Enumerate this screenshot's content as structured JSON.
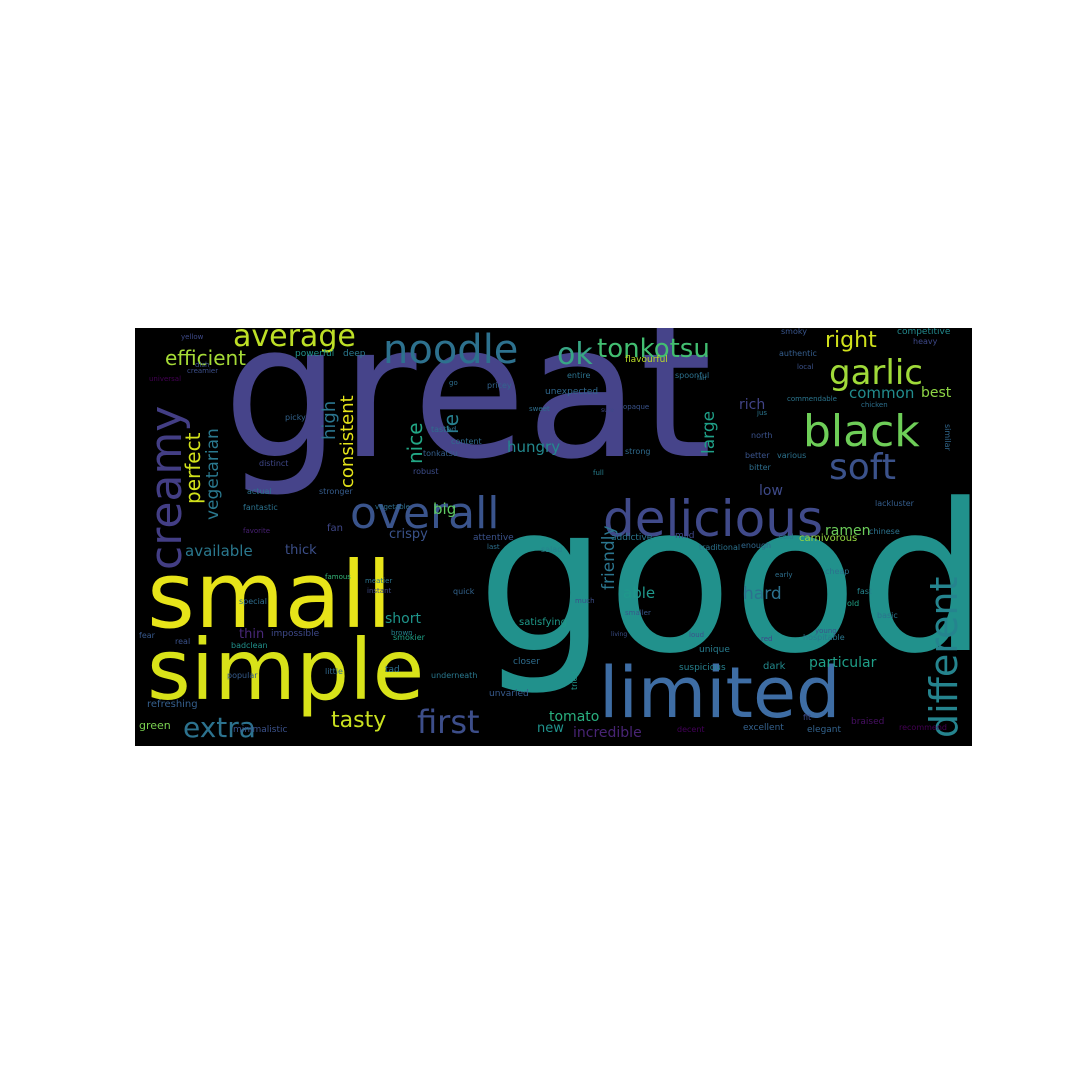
{
  "words": [
    {
      "text": "great",
      "color": "#46448a"
    },
    {
      "text": "good",
      "color": "#21918c"
    },
    {
      "text": "small",
      "color": "#e7e419"
    },
    {
      "text": "simple",
      "color": "#d8e219"
    },
    {
      "text": "limited",
      "color": "#3e6da4"
    },
    {
      "text": "delicious",
      "color": "#404a8a"
    },
    {
      "text": "overall",
      "color": "#3a548c"
    },
    {
      "text": "creamy",
      "color": "#433e85"
    },
    {
      "text": "noodle",
      "color": "#2d718e"
    },
    {
      "text": "different",
      "color": "#25848e"
    },
    {
      "text": "black",
      "color": "#6ece58"
    },
    {
      "text": "soft",
      "color": "#3b528b"
    },
    {
      "text": "garlic",
      "color": "#a0da39"
    },
    {
      "text": "average",
      "color": "#bddf26"
    },
    {
      "text": "ok",
      "color": "#38a685"
    },
    {
      "text": "tonkotsu",
      "color": "#42be71"
    },
    {
      "text": "efficient",
      "color": "#a5db36"
    },
    {
      "text": "right",
      "color": "#d0e11c"
    },
    {
      "text": "first",
      "color": "#3d4e8a"
    },
    {
      "text": "extra",
      "color": "#2c728e"
    },
    {
      "text": "tasty",
      "color": "#cae11f"
    },
    {
      "text": "perfect",
      "color": "#d2e21b"
    },
    {
      "text": "vegetarian",
      "color": "#2a788e"
    },
    {
      "text": "available",
      "color": "#2a788e"
    },
    {
      "text": "nice",
      "color": "#22a785"
    },
    {
      "text": "consistent",
      "color": "#e5e419"
    },
    {
      "text": "high",
      "color": "#2b758e"
    },
    {
      "text": "hungry",
      "color": "#23898e"
    },
    {
      "text": "friendly",
      "color": "#2b758e"
    },
    {
      "text": "large",
      "color": "#1fa088"
    },
    {
      "text": "rich",
      "color": "#414487"
    },
    {
      "text": "low",
      "color": "#3e4a89"
    },
    {
      "text": "common",
      "color": "#228c8d"
    },
    {
      "text": "best",
      "color": "#8ed645"
    },
    {
      "text": "ramen",
      "color": "#6ccd5a"
    },
    {
      "text": "re",
      "color": "#277f8e"
    },
    {
      "text": "big",
      "color": "#5ec962"
    },
    {
      "text": "crispy",
      "color": "#3a538b"
    },
    {
      "text": "thick",
      "color": "#3c4f8a"
    },
    {
      "text": "able",
      "color": "#1f988b"
    },
    {
      "text": "hard",
      "color": "#2c718e"
    },
    {
      "text": "short",
      "color": "#1f958b"
    },
    {
      "text": "particular",
      "color": "#1f9f88"
    },
    {
      "text": "tomato",
      "color": "#29af7f"
    },
    {
      "text": "new",
      "color": "#20928c"
    },
    {
      "text": "incredible",
      "color": "#482475"
    },
    {
      "text": "thin",
      "color": "#482878"
    },
    {
      "text": "fan",
      "color": "#3f4788"
    },
    {
      "text": "green",
      "color": "#7ad151"
    },
    {
      "text": "refreshing",
      "color": "#355f8d"
    },
    {
      "text": "popular",
      "color": "#365c8d"
    },
    {
      "text": "impossible",
      "color": "#3e4989"
    },
    {
      "text": "satisfying",
      "color": "#1f9a8a"
    },
    {
      "text": "unvaried",
      "color": "#375b8d"
    },
    {
      "text": "closer",
      "color": "#2e6d8e"
    },
    {
      "text": "unique",
      "color": "#287c8e"
    },
    {
      "text": "suspicious",
      "color": "#27808e"
    },
    {
      "text": "dark",
      "color": "#238a8d"
    },
    {
      "text": "decent",
      "color": "#44015a"
    },
    {
      "text": "excellent",
      "color": "#34618d"
    },
    {
      "text": "elegant",
      "color": "#33638d"
    },
    {
      "text": "braised",
      "color": "#471063"
    },
    {
      "text": "recommend",
      "color": "#440154"
    },
    {
      "text": "minimalistic",
      "color": "#3b528b"
    },
    {
      "text": "tad",
      "color": "#2d708e"
    },
    {
      "text": "little",
      "color": "#31688e"
    },
    {
      "text": "underneath",
      "color": "#2a788e"
    },
    {
      "text": "smokier",
      "color": "#1fa187"
    },
    {
      "text": "special",
      "color": "#2e6e8e"
    },
    {
      "text": "badclean",
      "color": "#21918c"
    },
    {
      "text": "real",
      "color": "#3b528b"
    },
    {
      "text": "fear",
      "color": "#38598c"
    },
    {
      "text": "famous",
      "color": "#35b779"
    },
    {
      "text": "meatier",
      "color": "#2b748e"
    },
    {
      "text": "instant",
      "color": "#3e4989"
    },
    {
      "text": "attentive",
      "color": "#3b528b"
    },
    {
      "text": "last",
      "color": "#2d708e"
    },
    {
      "text": "quick",
      "color": "#33638d"
    },
    {
      "text": "salad",
      "color": "#26828e"
    },
    {
      "text": "addictive",
      "color": "#2a768e"
    },
    {
      "text": "mild",
      "color": "#3f4889"
    },
    {
      "text": "enough",
      "color": "#31688e"
    },
    {
      "text": "early",
      "color": "#2e6f8e"
    },
    {
      "text": "cold",
      "color": "#287d8e"
    },
    {
      "text": "carnivorous",
      "color": "#95d840"
    },
    {
      "text": "chinese",
      "color": "#2c738e"
    },
    {
      "text": "cheap",
      "color": "#2d718e"
    },
    {
      "text": "fast",
      "color": "#25848e"
    },
    {
      "text": "old",
      "color": "#20a386"
    },
    {
      "text": "basic",
      "color": "#2b748e"
    },
    {
      "text": "young",
      "color": "#3a538b"
    },
    {
      "text": "hospitable",
      "color": "#2a788e"
    },
    {
      "text": "fit",
      "color": "#3e4989"
    },
    {
      "text": "actual",
      "color": "#2c718e"
    },
    {
      "text": "fantastic",
      "color": "#2c728e"
    },
    {
      "text": "distinct",
      "color": "#3f4788"
    },
    {
      "text": "picky",
      "color": "#33638d"
    },
    {
      "text": "favorite",
      "color": "#482173"
    },
    {
      "text": "stronger",
      "color": "#365d8d"
    },
    {
      "text": "robust",
      "color": "#3d4d8a"
    },
    {
      "text": "full",
      "color": "#277e8e"
    },
    {
      "text": "tasted",
      "color": "#2e6e8e"
    },
    {
      "text": "tonkatsu",
      "color": "#355f8d"
    },
    {
      "text": "content",
      "color": "#2f6c8e"
    },
    {
      "text": "unexpected",
      "color": "#30688e"
    },
    {
      "text": "sweet",
      "color": "#2e6f8e"
    },
    {
      "text": "vegetable",
      "color": "#2e6e8e"
    },
    {
      "text": "strong",
      "color": "#2f6b8e"
    },
    {
      "text": "brown",
      "color": "#25838e"
    },
    {
      "text": "much",
      "color": "#3d4e8a"
    },
    {
      "text": "smaller",
      "color": "#38588c"
    },
    {
      "text": "loud",
      "color": "#3b528b"
    },
    {
      "text": "red",
      "color": "#3f4889"
    },
    {
      "text": "tried",
      "color": "#1f968b"
    },
    {
      "text": "living",
      "color": "#3c508b"
    },
    {
      "text": "traditional",
      "color": "#2c728e"
    },
    {
      "text": "north",
      "color": "#3b528b"
    },
    {
      "text": "better",
      "color": "#3a548c"
    },
    {
      "text": "bitter",
      "color": "#2e6e8e"
    },
    {
      "text": "various",
      "color": "#2c728e"
    },
    {
      "text": "lackluster",
      "color": "#355e8d"
    },
    {
      "text": "similar",
      "color": "#31688e"
    },
    {
      "text": "jus",
      "color": "#2b758e"
    },
    {
      "text": "powerful",
      "color": "#21918c"
    },
    {
      "text": "deep",
      "color": "#2a788e"
    },
    {
      "text": "pricey",
      "color": "#33638d"
    },
    {
      "text": "entire",
      "color": "#2c738e"
    },
    {
      "text": "spoonful",
      "color": "#2c718e"
    },
    {
      "text": "flavourful",
      "color": "#bade28"
    },
    {
      "text": "authentic",
      "color": "#355e8d"
    },
    {
      "text": "local",
      "color": "#3b528b"
    },
    {
      "text": "smoky",
      "color": "#39558c"
    },
    {
      "text": "competitive",
      "color": "#238a8d"
    },
    {
      "text": "heavy",
      "color": "#3e4989"
    },
    {
      "text": "commendable",
      "color": "#2b758e"
    },
    {
      "text": "chicken",
      "color": "#2d708e"
    },
    {
      "text": "yellow",
      "color": "#3e4a89"
    },
    {
      "text": "dish",
      "color": "#3b528b"
    },
    {
      "text": "creamier",
      "color": "#3c4f8a"
    },
    {
      "text": "universal",
      "color": "#440154"
    },
    {
      "text": "opaque",
      "color": "#3a548c"
    },
    {
      "text": "fair",
      "color": "#2c728e"
    },
    {
      "text": "go",
      "color": "#2e6e8e"
    },
    {
      "text": "sure",
      "color": "#3f4889"
    }
  ]
}
